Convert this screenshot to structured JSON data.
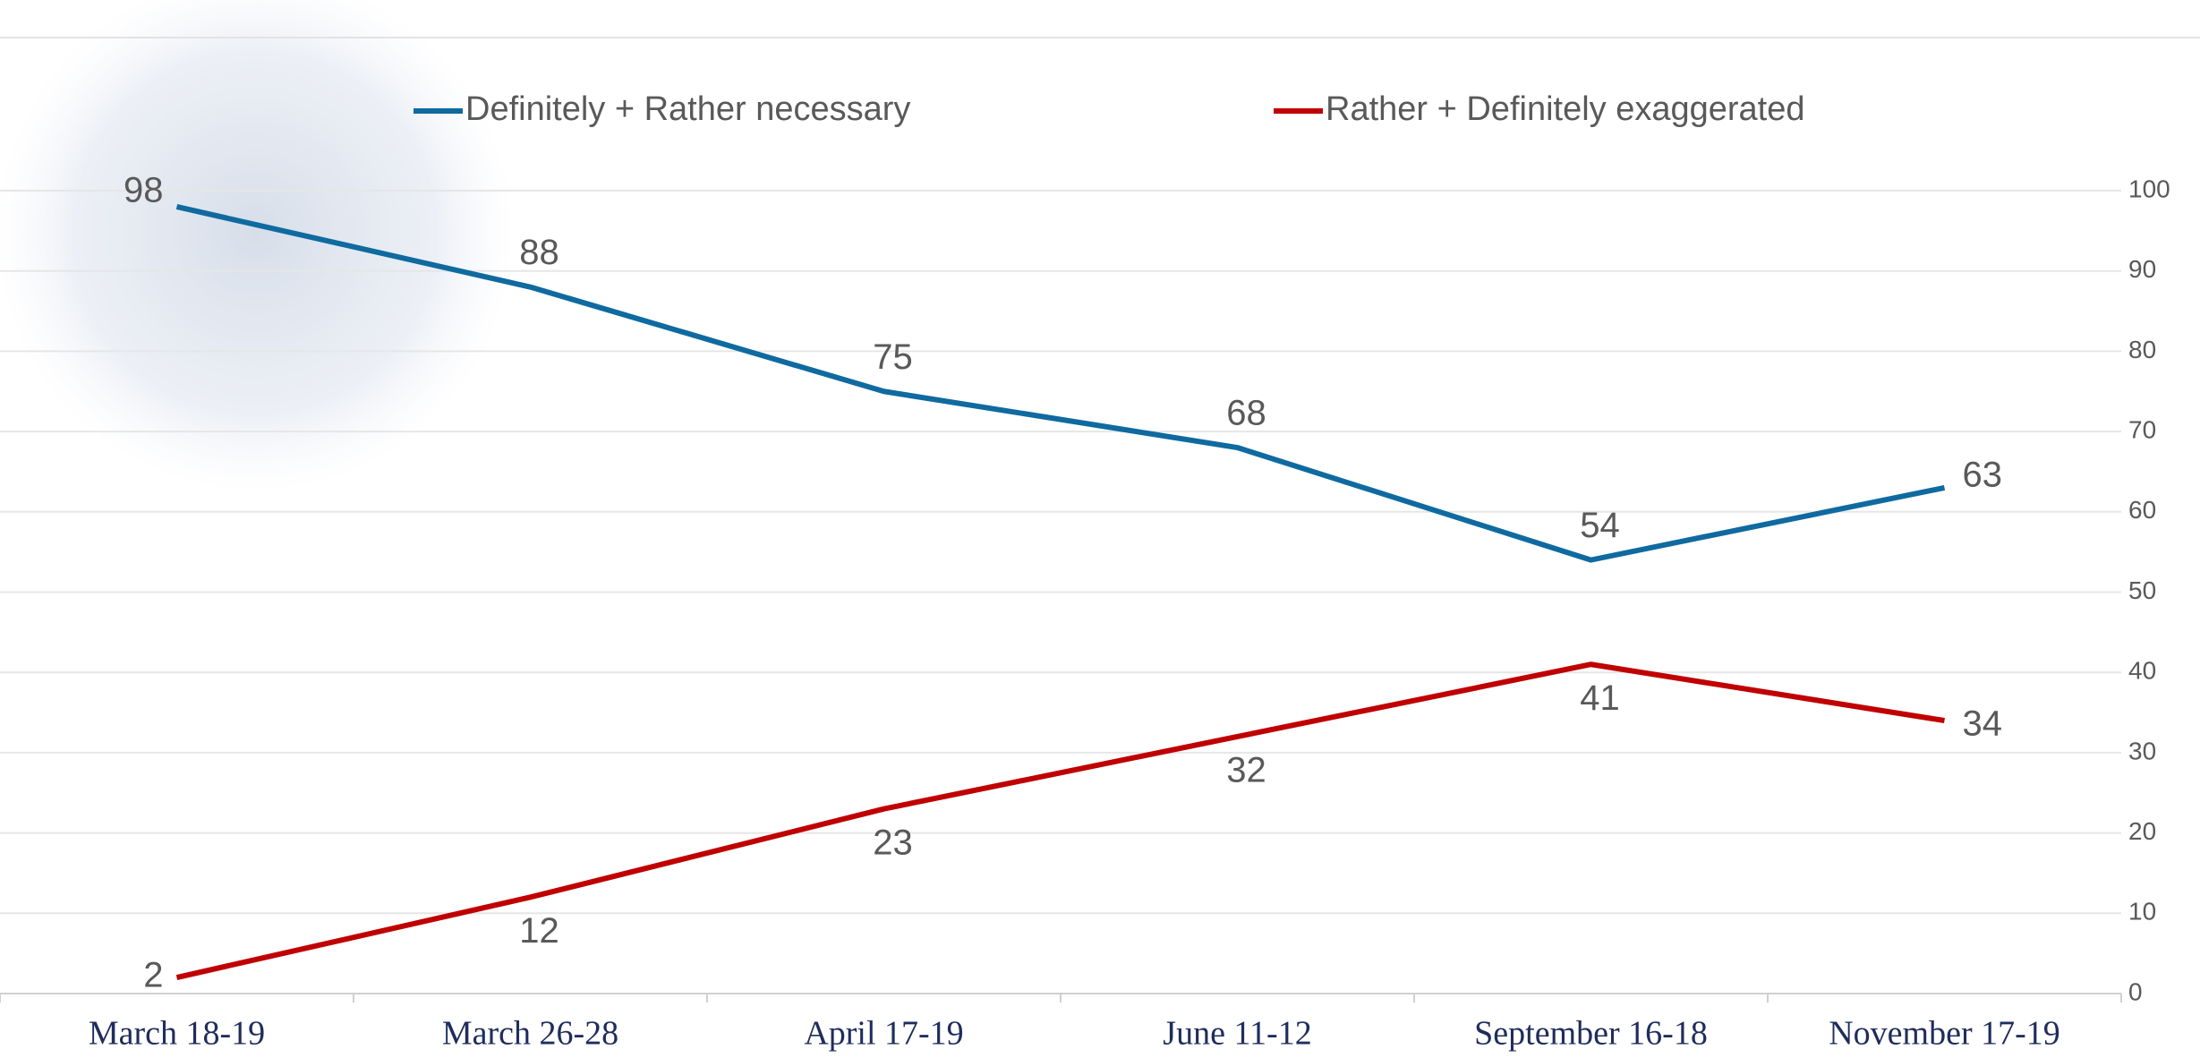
{
  "chart_data": {
    "type": "line",
    "categories": [
      "March 18-19",
      "March 26-28",
      "April 17-19",
      "June 11-12",
      "September 16-18",
      "November 17-19"
    ],
    "series": [
      {
        "name": "Definitely + Rather necessary",
        "color": "#0f6aa0",
        "values": [
          98,
          88,
          75,
          68,
          54,
          63
        ]
      },
      {
        "name": "Rather + Definitely exaggerated",
        "color": "#c00000",
        "values": [
          2,
          12,
          23,
          32,
          41,
          34
        ]
      }
    ],
    "ylim": [
      0,
      100
    ],
    "yticks": [
      0,
      10,
      20,
      30,
      40,
      50,
      60,
      70,
      80,
      90,
      100
    ],
    "grid": true,
    "y_axis_side": "right",
    "legend": "top"
  }
}
